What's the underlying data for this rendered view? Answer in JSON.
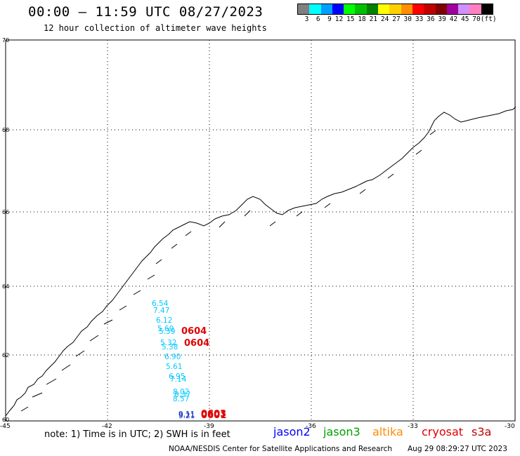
{
  "header": {
    "title": "00:00 – 11:59 UTC 08/27/2023",
    "subtitle": "12 hour collection of altimeter wave heights"
  },
  "legend": {
    "unit": "(ft)",
    "bins": [
      {
        "label": "3",
        "color": "#808080"
      },
      {
        "label": "6",
        "color": "#00ffff"
      },
      {
        "label": "9",
        "color": "#00a0ff"
      },
      {
        "label": "12",
        "color": "#0000ff"
      },
      {
        "label": "15",
        "color": "#00ff00"
      },
      {
        "label": "18",
        "color": "#00c000"
      },
      {
        "label": "21",
        "color": "#008000"
      },
      {
        "label": "24",
        "color": "#ffff00"
      },
      {
        "label": "27",
        "color": "#ffd000"
      },
      {
        "label": "30",
        "color": "#ff9000"
      },
      {
        "label": "33",
        "color": "#ff0000"
      },
      {
        "label": "36",
        "color": "#c00000"
      },
      {
        "label": "39",
        "color": "#800000"
      },
      {
        "label": "42",
        "color": "#a000a0"
      },
      {
        "label": "45",
        "color": "#d090ff"
      },
      {
        "label": "70",
        "color": "#ff80c0"
      },
      {
        "label": "(ft)",
        "color": "#000000"
      }
    ]
  },
  "axes": {
    "lat_labels": [
      "70",
      "68",
      "66",
      "64",
      "62",
      "60"
    ],
    "lon_labels": [
      "-45",
      "-42",
      "-39",
      "-36",
      "-33",
      "-30"
    ]
  },
  "observations": [
    {
      "text": "6.54",
      "satellite": "jason3-s3a",
      "color": "#00c8ff"
    },
    {
      "text": "7.47",
      "satellite": "s3a",
      "color": "#00c8ff"
    },
    {
      "text": "6.12",
      "satellite": "s3a",
      "color": "#00c8ff"
    },
    {
      "text": "5.69",
      "satellite": "s3a",
      "color": "#00c8ff"
    },
    {
      "text": "5.39",
      "satellite": "s3a",
      "color": "#00c8ff"
    },
    {
      "text": "5.32",
      "satellite": "s3a",
      "color": "#00c8ff"
    },
    {
      "text": "5.38",
      "satellite": "s3a",
      "color": "#00c8ff"
    },
    {
      "text": "6.90",
      "satellite": "s3a",
      "color": "#00c8ff"
    },
    {
      "text": "5.61",
      "satellite": "s3a",
      "color": "#00c8ff"
    },
    {
      "text": "6.95",
      "satellite": "s3a",
      "color": "#00c8ff"
    },
    {
      "text": "7.14",
      "satellite": "s3a",
      "color": "#00c8ff"
    },
    {
      "text": "8.02",
      "satellite": "s3a",
      "color": "#00c8ff"
    },
    {
      "text": "8.37",
      "satellite": "s3a",
      "color": "#00c8ff"
    },
    {
      "text": "8.57",
      "satellite": "s3a",
      "color": "#00c8ff"
    },
    {
      "text": "9.11",
      "satellite": "jason2",
      "color": "#0020c0"
    },
    {
      "text": "9.21",
      "satellite": "jason2",
      "color": "#0020c0"
    },
    {
      "text": "0604",
      "satellite": "time",
      "color": "#e00000"
    },
    {
      "text": "0604",
      "satellite": "time",
      "color": "#e00000"
    },
    {
      "text": "0603",
      "satellite": "time",
      "color": "#e00000"
    },
    {
      "text": "0601",
      "satellite": "time",
      "color": "#e00000"
    }
  ],
  "footer": {
    "note": "note: 1) Time is in UTC; 2) SWH is in feet",
    "satellites": [
      {
        "name": "jason2",
        "color": "#0000ff"
      },
      {
        "name": "jason3",
        "color": "#00a000"
      },
      {
        "name": "altika",
        "color": "#ff8c00"
      },
      {
        "name": "cryosat",
        "color": "#e00000"
      },
      {
        "name": "s3a",
        "color": "#c00000"
      }
    ],
    "credit": "NOAA/NESDIS Center for Satellite Applications and Research",
    "timestamp": "Aug 29 08:29:27 UTC 2023"
  }
}
